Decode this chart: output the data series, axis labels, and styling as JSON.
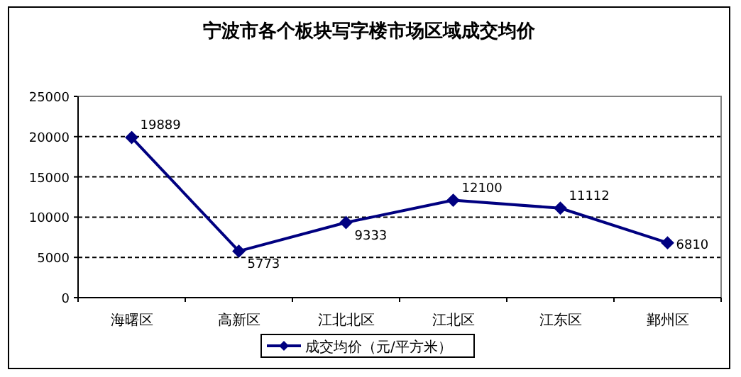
{
  "chart_data": {
    "type": "line",
    "title": "宁波市各个板块写字楼市场区域成交均价",
    "categories": [
      "海曙区",
      "高新区",
      "江北北区",
      "江北区",
      "江东区",
      "鄞州区"
    ],
    "series": [
      {
        "name": "成交均价（元/平方米）",
        "color": "#000080",
        "values": [
          19889,
          5773,
          9333,
          12100,
          11112,
          6810
        ]
      }
    ],
    "ylim": [
      0,
      25000
    ],
    "yticks": [
      0,
      5000,
      10000,
      15000,
      20000,
      25000
    ],
    "grid": "y",
    "legend": "bottom",
    "marker": "diamond",
    "line_style": "solid",
    "data_labels": true
  }
}
